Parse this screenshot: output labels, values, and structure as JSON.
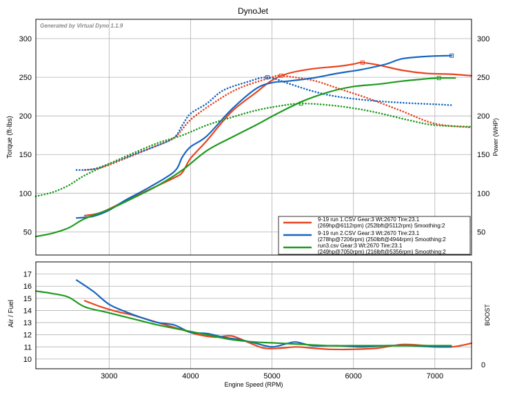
{
  "title": "DynoJet",
  "watermark": "Generated by Virtual Dyno 1.1.9",
  "colors": {
    "run1": "#e8431e",
    "run2": "#1565c0",
    "run3": "#1e9a1e",
    "grid": "#b0b0b0",
    "frame": "#000000"
  },
  "chart_data": [
    {
      "type": "line",
      "panel": "power-torque",
      "ylabel_left": "Torque (ft-lbs)",
      "ylabel_right": "Power (WHP)",
      "xlim": [
        2100,
        7450
      ],
      "ylim": [
        20,
        325
      ],
      "x_ticks": [
        3000,
        4000,
        5000,
        6000,
        7000
      ],
      "y_ticks": [
        50,
        100,
        150,
        200,
        250,
        300
      ],
      "grid": true,
      "legend_position": "bottom-right",
      "legend": [
        {
          "line1": "9-19 run 1.CSV Gear:3 Wt:2670 Tire:23.1",
          "line2": "(269hp@6112rpm) (252lbft@5112rpm) Smoothing:2",
          "color_key": "run1"
        },
        {
          "line1": "9-19 run 2.CSV Gear:3 Wt:2670 Tire:23.1",
          "line2": "(278hp@7206rpm) (250lbft@4944rpm) Smoothing:2",
          "color_key": "run2"
        },
        {
          "line1": "run3.csv Gear:3 Wt:2670 Tire:23.1",
          "line2": "(249hp@7050rpm) (216lbft@5356rpm) Smoothing:2",
          "color_key": "run3"
        }
      ],
      "series": [
        {
          "name": "9-19 run 1.CSV",
          "measure": "power",
          "color_key": "run1",
          "x": [
            2700,
            2900,
            3200,
            3500,
            3800,
            3900,
            4000,
            4200,
            4500,
            4800,
            5000,
            5200,
            5500,
            5800,
            6000,
            6100,
            6300,
            6600,
            6900,
            7200,
            7450
          ],
          "y": [
            71,
            75,
            90,
            105,
            120,
            127,
            145,
            168,
            205,
            230,
            246,
            255,
            261,
            264,
            267,
            269,
            266,
            259,
            255,
            254,
            252
          ],
          "peak_marker": [
            6112,
            269
          ]
        },
        {
          "name": "9-19 run 1.CSV",
          "measure": "torque",
          "color_key": "run1",
          "x": [
            2700,
            2900,
            3200,
            3500,
            3800,
            4000,
            4300,
            4600,
            5000,
            5112,
            5500,
            5800,
            6200,
            6600,
            7000,
            7450
          ],
          "y": [
            130,
            133,
            145,
            158,
            172,
            195,
            218,
            236,
            250,
            252,
            246,
            236,
            222,
            206,
            190,
            185
          ],
          "peak_marker": [
            5112,
            252
          ]
        },
        {
          "name": "9-19 run 2.CSV",
          "measure": "power",
          "color_key": "run2",
          "x": [
            2600,
            2800,
            3000,
            3200,
            3500,
            3800,
            3900,
            4000,
            4200,
            4500,
            4800,
            5000,
            5200,
            5500,
            5800,
            6100,
            6400,
            6600,
            6900,
            7206
          ],
          "y": [
            68,
            70,
            78,
            91,
            108,
            128,
            147,
            160,
            174,
            208,
            235,
            243,
            245,
            249,
            255,
            260,
            267,
            274,
            277,
            278
          ],
          "peak_marker": [
            7206,
            278
          ]
        },
        {
          "name": "9-19 run 2.CSV",
          "measure": "torque",
          "color_key": "run2",
          "x": [
            2600,
            2800,
            3000,
            3300,
            3600,
            3800,
            3900,
            4000,
            4200,
            4400,
            4700,
            4944,
            5200,
            5500,
            5800,
            6200,
            6600,
            7000,
            7200
          ],
          "y": [
            130,
            131,
            138,
            150,
            162,
            172,
            188,
            203,
            216,
            233,
            244,
            250,
            242,
            232,
            225,
            220,
            217,
            215,
            214
          ],
          "peak_marker": [
            4944,
            250
          ]
        },
        {
          "name": "run3.csv",
          "measure": "power",
          "color_key": "run3",
          "x": [
            2100,
            2300,
            2500,
            2700,
            3000,
            3300,
            3600,
            3900,
            4200,
            4500,
            4800,
            5100,
            5400,
            5700,
            6000,
            6300,
            6600,
            6900,
            7050,
            7250
          ],
          "y": [
            44,
            48,
            55,
            67,
            79,
            94,
            110,
            130,
            155,
            172,
            188,
            205,
            220,
            231,
            238,
            241,
            245,
            248,
            249,
            249
          ],
          "peak_marker": [
            7050,
            249
          ]
        },
        {
          "name": "run3.csv",
          "measure": "torque",
          "color_key": "run3",
          "x": [
            2100,
            2300,
            2500,
            2700,
            3000,
            3300,
            3600,
            3900,
            4200,
            4500,
            4800,
            5100,
            5356,
            5700,
            6000,
            6300,
            6700,
            7000,
            7450
          ],
          "y": [
            96,
            101,
            110,
            123,
            138,
            152,
            165,
            175,
            188,
            198,
            207,
            213,
            216,
            214,
            210,
            204,
            194,
            188,
            186
          ],
          "peak_marker": [
            5356,
            216
          ]
        }
      ]
    },
    {
      "type": "line",
      "panel": "air-fuel",
      "ylabel_left": "Air / Fuel",
      "ylabel_right": "BOOST",
      "xlabel": "Engine Speed (RPM)",
      "xlim": [
        2100,
        7450
      ],
      "ylim": [
        9.2,
        18
      ],
      "x_ticks": [
        3000,
        4000,
        5000,
        6000,
        7000
      ],
      "y_ticks": [
        10,
        11,
        12,
        13,
        14,
        15,
        16,
        17
      ],
      "boost_ticks": [
        0
      ],
      "grid": true,
      "series": [
        {
          "name": "9-19 run 1.CSV",
          "color_key": "run1",
          "x": [
            2700,
            2900,
            3100,
            3300,
            3500,
            3700,
            3900,
            4100,
            4300,
            4500,
            4700,
            4900,
            5100,
            5300,
            5500,
            5700,
            6000,
            6300,
            6600,
            6900,
            7200,
            7450
          ],
          "y": [
            14.8,
            14.3,
            13.9,
            13.6,
            13.2,
            12.8,
            12.4,
            12.0,
            11.8,
            11.9,
            11.4,
            10.9,
            10.9,
            11.0,
            10.9,
            10.8,
            10.8,
            10.9,
            11.2,
            11.1,
            11.0,
            11.3
          ]
        },
        {
          "name": "9-19 run 2.CSV",
          "color_key": "run2",
          "x": [
            2600,
            2800,
            3000,
            3200,
            3400,
            3600,
            3800,
            4000,
            4200,
            4400,
            4600,
            4800,
            5000,
            5200,
            5300,
            5500,
            5800,
            6100,
            6400,
            6700,
            7000,
            7200
          ],
          "y": [
            16.5,
            15.6,
            14.5,
            13.9,
            13.4,
            13.0,
            12.8,
            12.2,
            12.1,
            11.8,
            11.6,
            11.3,
            11.0,
            11.3,
            11.4,
            11.1,
            11.1,
            11.0,
            11.1,
            11.1,
            11.0,
            11.0
          ]
        },
        {
          "name": "run3.csv",
          "color_key": "run3",
          "x": [
            2100,
            2300,
            2500,
            2700,
            3000,
            3300,
            3600,
            3900,
            4200,
            4500,
            4800,
            5100,
            5400,
            5700,
            6000,
            6300,
            6600,
            6900,
            7200
          ],
          "y": [
            15.6,
            15.4,
            15.1,
            14.3,
            13.8,
            13.3,
            12.8,
            12.4,
            12.0,
            11.6,
            11.4,
            11.3,
            11.2,
            11.1,
            11.1,
            11.1,
            11.1,
            11.1,
            11.1
          ]
        }
      ]
    }
  ]
}
